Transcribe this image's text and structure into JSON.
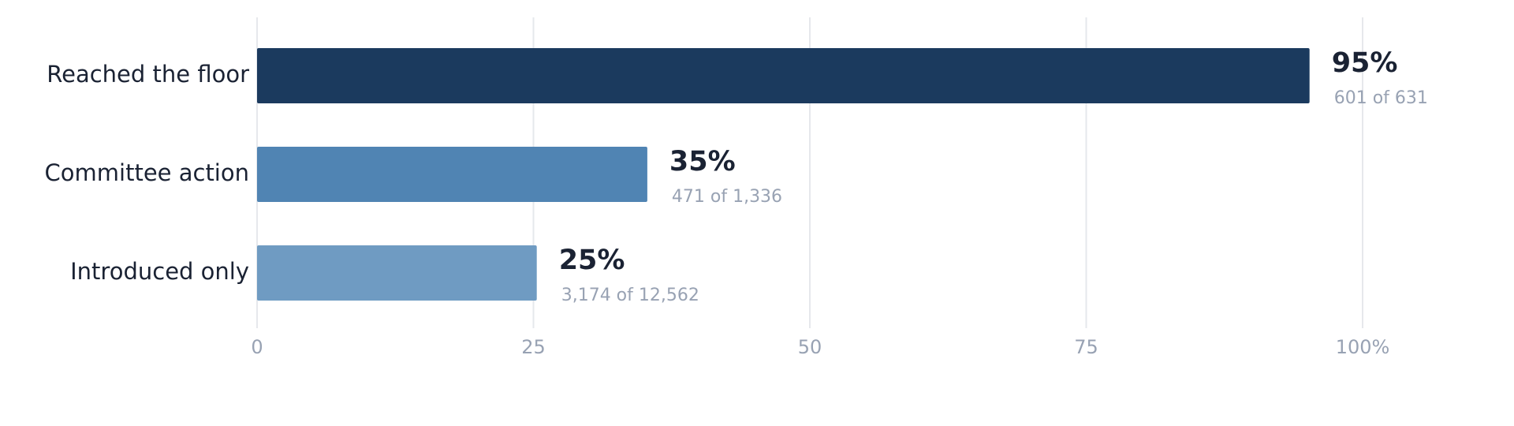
{
  "chart_data": {
    "type": "hbar",
    "categories": [
      "Reached the floor",
      "Committee action",
      "Introduced only"
    ],
    "values": [
      95.2,
      35.3,
      25.3
    ],
    "value_labels": [
      "95%",
      "35%",
      "25%"
    ],
    "details": [
      "601 of 631",
      "471 of 1,336",
      "3,174 of 12,562"
    ],
    "colors": [
      "#1b3a5e",
      "#5084b3",
      "#6f9bc2"
    ],
    "xlim": [
      0,
      100
    ],
    "xticks": [
      0,
      25,
      50,
      75,
      {
        "value": 100,
        "label": "100%"
      }
    ],
    "grid": true
  }
}
